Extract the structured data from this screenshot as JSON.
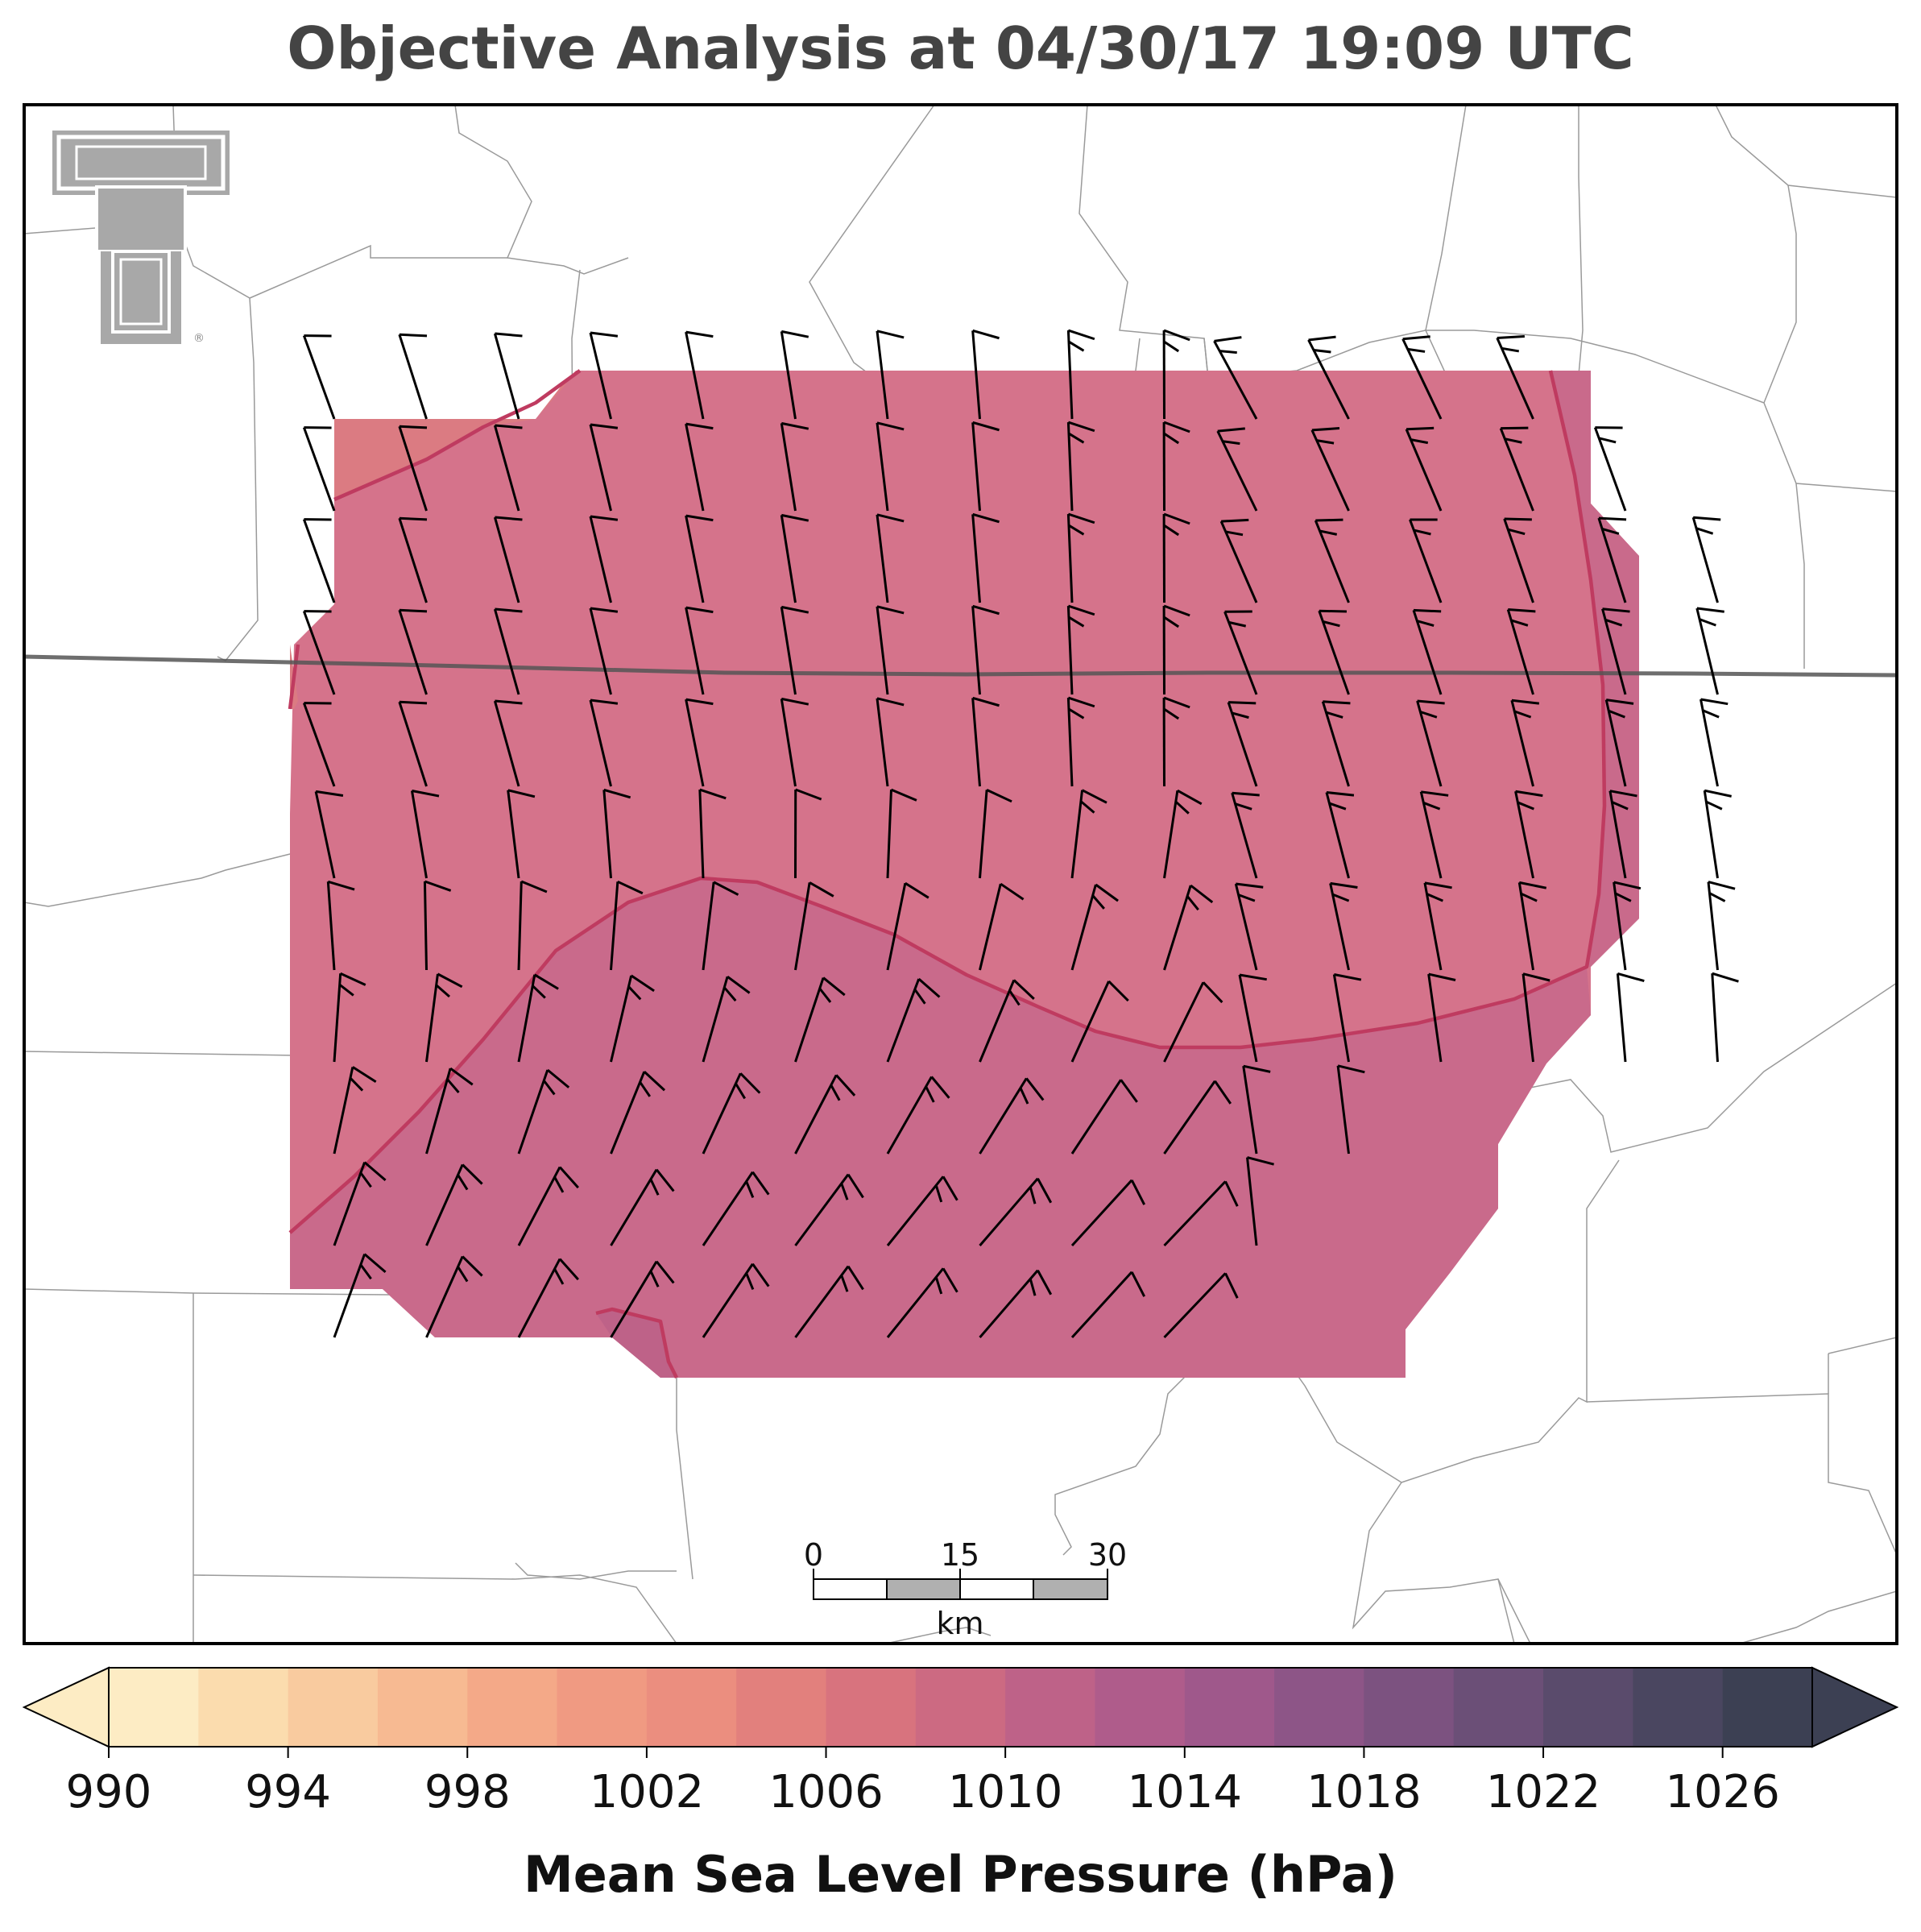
{
  "title": "Objective Analysis at 04/30/17 19:09 UTC",
  "colorbar": {
    "label": "Mean Sea Level Pressure (hPa)",
    "min": 990,
    "max": 1028,
    "step": 2,
    "tick_labels": [
      "990",
      "994",
      "998",
      "1002",
      "1006",
      "1010",
      "1014",
      "1018",
      "1022",
      "1026"
    ],
    "colors": [
      "#fdecc4",
      "#fbdcae",
      "#f9cb9f",
      "#f7ba92",
      "#f4a988",
      "#f09a82",
      "#eb8e7f",
      "#e2807d",
      "#d8737e",
      "#cc6a82",
      "#be6288",
      "#af5c8b",
      "#9f588b",
      "#8d5587",
      "#7c5280",
      "#6b4f77",
      "#5a4b6c",
      "#4a4660",
      "#3c4053"
    ]
  },
  "scale_bar": {
    "ticks": [
      "0",
      "15",
      "30"
    ],
    "unit": "km"
  },
  "logo": {
    "icon": "double-t-logo-icon",
    "mark": "®"
  },
  "isobars": {
    "levels": [
      1010,
      1012
    ]
  },
  "wind_field": {
    "icon": "wind-barb-icon",
    "rows": 11,
    "cols": 15
  }
}
